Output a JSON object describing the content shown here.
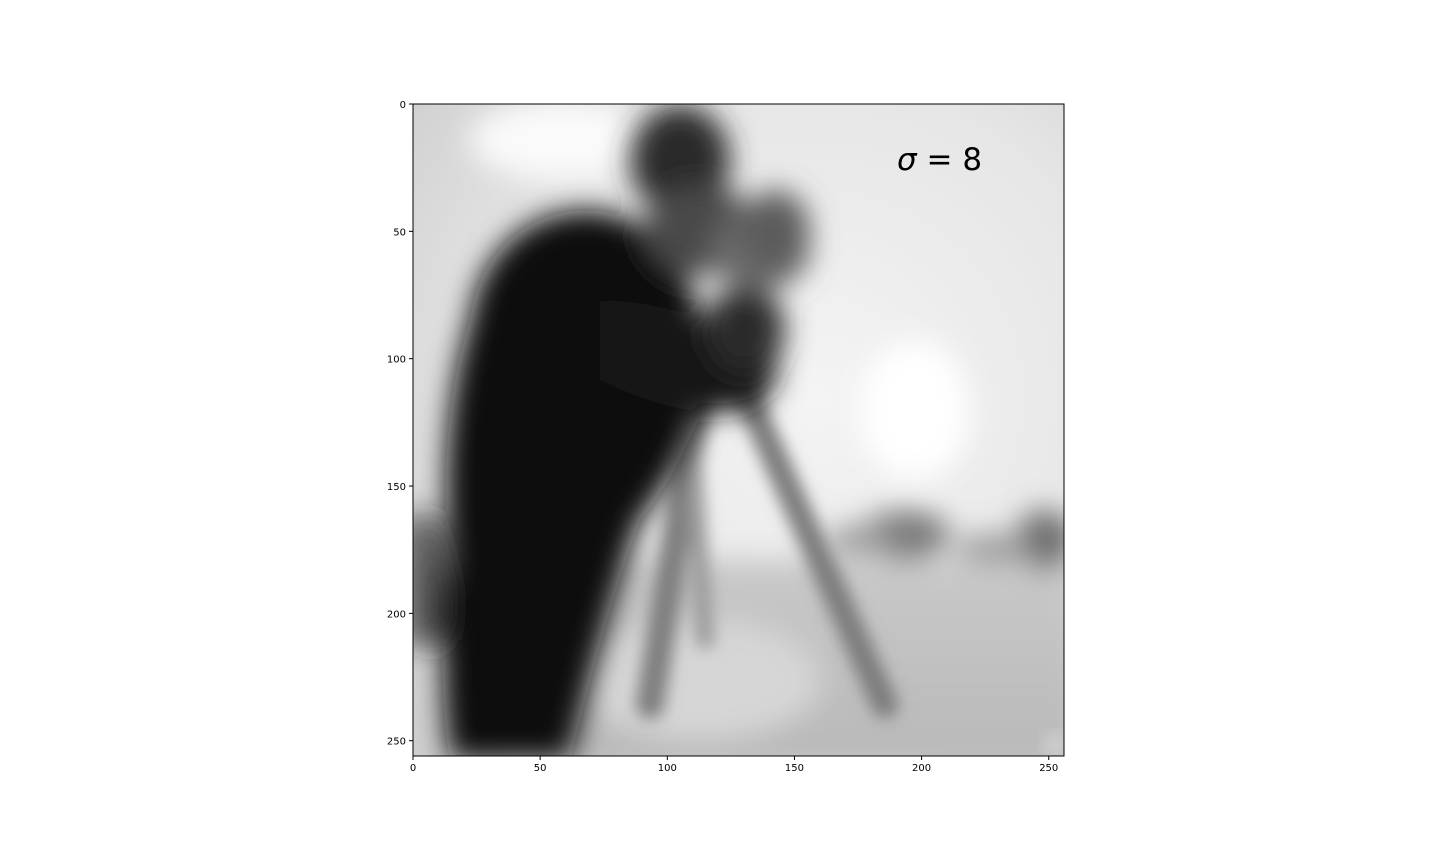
{
  "image": {
    "description_type": "blurred-grayscale-photo",
    "colormap": "gray",
    "subject_icon": "cameraman-photo"
  },
  "annotation": {
    "symbol": "σ",
    "text": " = 8",
    "sigma": 8
  },
  "axes": {
    "x_range": [
      0,
      256
    ],
    "y_range": [
      0,
      256
    ],
    "y_inverted": true,
    "x_ticks": [
      "0",
      "50",
      "100",
      "150",
      "200",
      "250"
    ],
    "y_ticks": [
      "0",
      "50",
      "100",
      "150",
      "200",
      "250"
    ],
    "x_tick_values": [
      0,
      50,
      100,
      150,
      200,
      250
    ],
    "y_tick_values": [
      0,
      50,
      100,
      150,
      200,
      250
    ]
  }
}
